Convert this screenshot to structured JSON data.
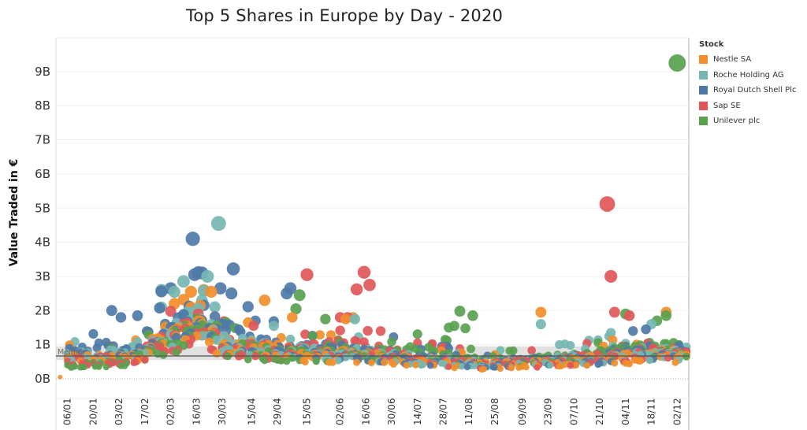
{
  "chart_data": {
    "type": "scatter",
    "title": "Top 5 Shares in Europe by Day - 2020",
    "xlabel": "",
    "ylabel": "Value Traded in €",
    "y_unit": "billions of EUR",
    "ylim": [
      0,
      10
    ],
    "yticks": [
      0,
      1,
      2,
      3,
      4,
      5,
      6,
      7,
      8,
      9
    ],
    "ytick_labels": [
      "0B",
      "1B",
      "2B",
      "3B",
      "4B",
      "5B",
      "6B",
      "7B",
      "8B",
      "9B"
    ],
    "x_range_days": [
      1,
      342
    ],
    "xtick_labels": [
      "06/01",
      "20/01",
      "03/02",
      "17/02",
      "02/03",
      "16/03",
      "30/03",
      "15/04",
      "29/04",
      "15/05",
      "02/06",
      "16/06",
      "30/06",
      "14/07",
      "28/07",
      "11/08",
      "25/08",
      "09/09",
      "23/09",
      "07/10",
      "21/10",
      "04/11",
      "18/11",
      "02/12"
    ],
    "xtick_days": [
      6,
      20,
      34,
      48,
      62,
      76,
      90,
      106,
      120,
      136,
      154,
      168,
      182,
      196,
      210,
      224,
      238,
      253,
      267,
      281,
      295,
      309,
      323,
      337
    ],
    "grid": true,
    "legend_position": "right",
    "legend_title": "Stock",
    "size_encodes_value": true,
    "reference_line": {
      "label": "Median",
      "value": 0.67,
      "band": [
        0.55,
        0.95
      ]
    },
    "series": [
      {
        "name": "Nestle SA",
        "color": "#F28E2B",
        "baseline": [
          [
            1,
            0.6
          ],
          [
            40,
            0.65
          ],
          [
            62,
            1.4
          ],
          [
            76,
            1.6
          ],
          [
            90,
            1.0
          ],
          [
            110,
            1.0
          ],
          [
            130,
            0.75
          ],
          [
            160,
            0.7
          ],
          [
            200,
            0.55
          ],
          [
            230,
            0.4
          ],
          [
            260,
            0.5
          ],
          [
            290,
            0.6
          ],
          [
            320,
            0.7
          ],
          [
            342,
            0.75
          ]
        ],
        "highlights": [
          [
            64,
            2.2
          ],
          [
            73,
            2.55
          ],
          [
            80,
            2.6
          ],
          [
            84,
            2.55
          ],
          [
            78,
            2.15
          ],
          [
            113,
            2.3
          ],
          [
            128,
            1.8
          ],
          [
            157,
            1.75
          ],
          [
            161,
            1.8
          ],
          [
            263,
            1.95
          ],
          [
            331,
            1.95
          ],
          [
            2,
            0.05
          ]
        ]
      },
      {
        "name": "Roche Holding AG",
        "color": "#76B7B2",
        "baseline": [
          [
            1,
            0.65
          ],
          [
            40,
            0.8
          ],
          [
            62,
            1.4
          ],
          [
            76,
            1.8
          ],
          [
            90,
            1.1
          ],
          [
            110,
            0.95
          ],
          [
            130,
            0.8
          ],
          [
            160,
            0.8
          ],
          [
            200,
            0.6
          ],
          [
            230,
            0.45
          ],
          [
            260,
            0.55
          ],
          [
            290,
            0.65
          ],
          [
            320,
            0.8
          ],
          [
            342,
            0.8
          ]
        ],
        "highlights": [
          [
            57,
            2.6
          ],
          [
            82,
            3.0
          ],
          [
            88,
            4.55
          ],
          [
            79,
            2.3
          ],
          [
            162,
            1.75
          ],
          [
            263,
            1.6
          ],
          [
            273,
            1.0
          ],
          [
            301,
            1.35
          ],
          [
            323,
            1.6
          ]
        ]
      },
      {
        "name": "Royal Dutch Shell Plc",
        "color": "#4E79A7",
        "baseline": [
          [
            1,
            0.8
          ],
          [
            40,
            1.0
          ],
          [
            62,
            1.6
          ],
          [
            76,
            2.0
          ],
          [
            90,
            1.4
          ],
          [
            110,
            1.1
          ],
          [
            130,
            0.9
          ],
          [
            160,
            0.85
          ],
          [
            200,
            0.6
          ],
          [
            230,
            0.45
          ],
          [
            260,
            0.55
          ],
          [
            290,
            0.6
          ],
          [
            320,
            0.9
          ],
          [
            342,
            0.8
          ]
        ],
        "highlights": [
          [
            30,
            2.0
          ],
          [
            35,
            1.8
          ],
          [
            62,
            2.65
          ],
          [
            74,
            4.1
          ],
          [
            75,
            3.05
          ],
          [
            79,
            3.1
          ],
          [
            89,
            2.65
          ],
          [
            96,
            3.22
          ],
          [
            95,
            2.5
          ],
          [
            125,
            2.5
          ],
          [
            127,
            2.65
          ],
          [
            108,
            1.7
          ],
          [
            313,
            1.4
          ],
          [
            320,
            1.45
          ]
        ]
      },
      {
        "name": "Sap SE",
        "color": "#E15759",
        "baseline": [
          [
            1,
            0.5
          ],
          [
            40,
            0.6
          ],
          [
            62,
            1.2
          ],
          [
            76,
            1.5
          ],
          [
            90,
            1.0
          ],
          [
            110,
            0.9
          ],
          [
            130,
            0.8
          ],
          [
            160,
            1.0
          ],
          [
            200,
            0.6
          ],
          [
            230,
            0.45
          ],
          [
            260,
            0.5
          ],
          [
            290,
            0.6
          ],
          [
            320,
            0.8
          ],
          [
            342,
            0.8
          ]
        ],
        "highlights": [
          [
            77,
            1.9
          ],
          [
            136,
            3.05
          ],
          [
            163,
            2.62
          ],
          [
            167,
            3.12
          ],
          [
            170,
            2.75
          ],
          [
            154,
            1.8
          ],
          [
            158,
            1.8
          ],
          [
            196,
            1.05
          ],
          [
            204,
            1.0
          ],
          [
            299,
            5.12
          ],
          [
            301,
            3.0
          ],
          [
            303,
            1.95
          ],
          [
            311,
            1.85
          ]
        ]
      },
      {
        "name": "Unilever plc",
        "color": "#59A14F",
        "baseline": [
          [
            1,
            0.45
          ],
          [
            40,
            0.55
          ],
          [
            62,
            1.1
          ],
          [
            76,
            1.5
          ],
          [
            90,
            1.0
          ],
          [
            110,
            0.8
          ],
          [
            130,
            0.7
          ],
          [
            160,
            0.8
          ],
          [
            200,
            0.8
          ],
          [
            230,
            0.5
          ],
          [
            260,
            0.55
          ],
          [
            290,
            0.65
          ],
          [
            320,
            0.9
          ],
          [
            342,
            0.9
          ]
        ],
        "highlights": [
          [
            132,
            2.45
          ],
          [
            130,
            2.05
          ],
          [
            146,
            1.75
          ],
          [
            213,
            1.5
          ],
          [
            216,
            1.55
          ],
          [
            219,
            1.98
          ],
          [
            222,
            1.48
          ],
          [
            226,
            1.85
          ],
          [
            309,
            1.9
          ],
          [
            326,
            1.7
          ],
          [
            331,
            1.85
          ],
          [
            337,
            9.25
          ]
        ]
      }
    ]
  }
}
